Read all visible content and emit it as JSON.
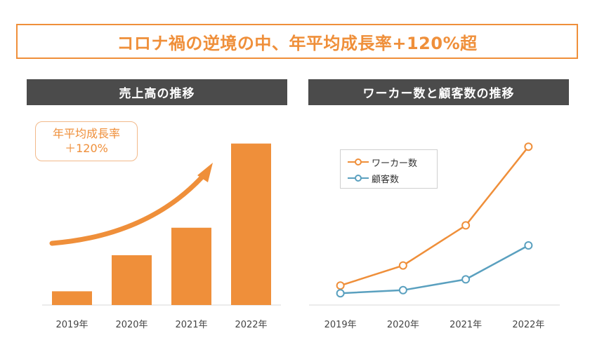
{
  "headline": "コロナ禍の逆境の中、年平均成長率+120%超",
  "colors": {
    "orange": "#ef8f3a",
    "blue": "#5aa0bf",
    "dark_gray": "#4b4b4b",
    "axis": "#d9d9d9"
  },
  "chart_data": [
    {
      "type": "bar",
      "title": "売上高の推移",
      "categories": [
        "2019年",
        "2020年",
        "2021年",
        "2022年"
      ],
      "values": [
        8,
        29,
        45,
        94
      ],
      "ylim": [
        0,
        100
      ],
      "annotation": {
        "lines": [
          "年平均成長率",
          "＋120%"
        ]
      }
    },
    {
      "type": "line",
      "title": "ワーカー数と顧客数の推移",
      "categories": [
        "2019年",
        "2020年",
        "2021年",
        "2022年"
      ],
      "series": [
        {
          "name": "ワーカー数",
          "values": [
            9,
            22,
            48,
            99
          ]
        },
        {
          "name": "顧客数",
          "values": [
            4,
            6,
            13,
            35
          ]
        }
      ],
      "ylim": [
        0,
        100
      ],
      "legend": "top-left"
    }
  ]
}
